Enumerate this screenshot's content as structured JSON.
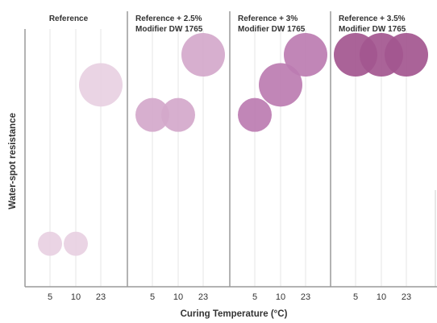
{
  "chart_data": {
    "type": "scatter",
    "subtype": "bubble",
    "xlabel": "Curing Temperature (°C)",
    "ylabel": "Water-spot resistance",
    "x_categories": [
      "5",
      "10",
      "23"
    ],
    "y_scale": "qualitative (no tick labels)",
    "ylim": [
      0,
      6
    ],
    "grid": "vertical lines at each curing temperature",
    "legend": "none",
    "panels": [
      {
        "title": [
          "Reference"
        ],
        "color": "#e8d0e2",
        "points": [
          {
            "x": "5",
            "y": 1.0
          },
          {
            "x": "10",
            "y": 1.0
          },
          {
            "x": "23",
            "y": 4.7
          }
        ]
      },
      {
        "title": [
          "Reference + 2.5%",
          "Modifier DW 1765"
        ],
        "color": "#d4a8cb",
        "points": [
          {
            "x": "5",
            "y": 4.0
          },
          {
            "x": "10",
            "y": 4.0
          },
          {
            "x": "23",
            "y": 5.4
          }
        ]
      },
      {
        "title": [
          "Reference + 3%",
          "Modifier DW 1765"
        ],
        "color": "#bc7cb1",
        "points": [
          {
            "x": "5",
            "y": 4.0
          },
          {
            "x": "10",
            "y": 4.7
          },
          {
            "x": "23",
            "y": 5.4
          }
        ]
      },
      {
        "title": [
          "Reference + 3.5%",
          "Modifier DW 1765"
        ],
        "color": "#a3568f",
        "points": [
          {
            "x": "5",
            "y": 5.4
          },
          {
            "x": "10",
            "y": 5.4
          },
          {
            "x": "23",
            "y": 5.4
          }
        ]
      }
    ]
  }
}
